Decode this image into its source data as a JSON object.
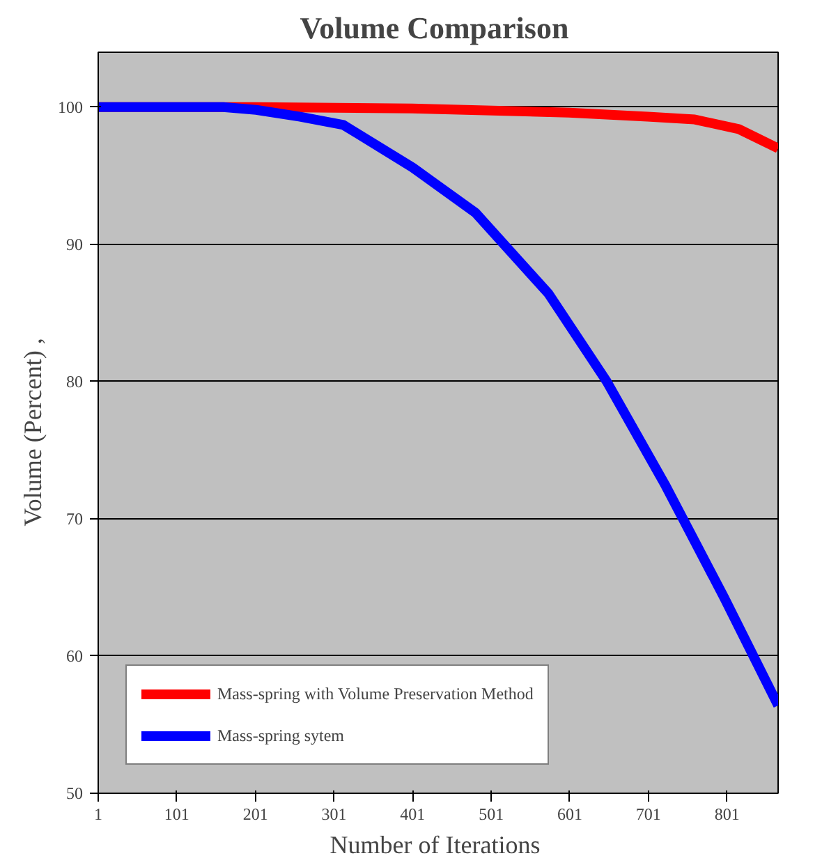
{
  "chart_data": {
    "type": "line",
    "title": "Volume  Comparison",
    "xlabel": "Number of  Iterations",
    "ylabel": "Volume (Percent)    ,",
    "xlim": [
      1,
      866
    ],
    "xticks": [
      1,
      101,
      201,
      301,
      401,
      501,
      601,
      701,
      801
    ],
    "ylim": [
      50,
      104
    ],
    "yticks": [
      50,
      60,
      70,
      80,
      90,
      100
    ],
    "grid": "y",
    "legend": "bottom left",
    "line_style": "solid",
    "marker": "none",
    "series": [
      {
        "name": "Mass-spring with Volume Preservation Method",
        "color": "#ff0000",
        "x": [
          1,
          200,
          400,
          600,
          700,
          760,
          816,
          866
        ],
        "values": [
          100,
          100,
          99.9,
          99.6,
          99.3,
          99.1,
          98.4,
          97
        ]
      },
      {
        "name": "Mass-spring sytem",
        "color": "#0000ff",
        "x": [
          1,
          160,
          202,
          258,
          313,
          401,
          481,
          574,
          648,
          723,
          797,
          866
        ],
        "values": [
          100,
          100,
          99.8,
          99.3,
          98.7,
          95.6,
          92.3,
          86.4,
          80,
          72.4,
          64.3,
          56.4
        ]
      }
    ]
  }
}
